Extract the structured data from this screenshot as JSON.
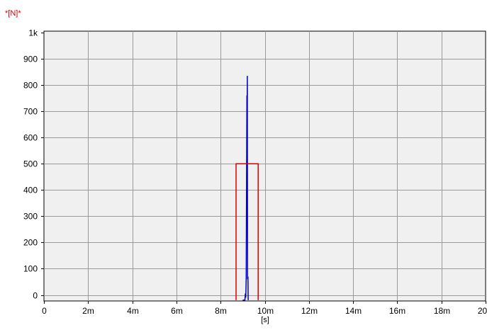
{
  "chart_data": {
    "type": "line",
    "unit_label": "*[N]*",
    "xlabel": "[s]",
    "ylabel": "",
    "xlim": [
      0,
      0.02
    ],
    "ylim": [
      0,
      1000
    ],
    "x_ticks": [
      {
        "value": 0,
        "label": "0"
      },
      {
        "value": 0.002,
        "label": "2m"
      },
      {
        "value": 0.004,
        "label": "4m"
      },
      {
        "value": 0.006,
        "label": "6m"
      },
      {
        "value": 0.008,
        "label": "8m"
      },
      {
        "value": 0.01,
        "label": "10m"
      },
      {
        "value": 0.012,
        "label": "12m"
      },
      {
        "value": 0.014,
        "label": "14m"
      },
      {
        "value": 0.016,
        "label": "16m"
      },
      {
        "value": 0.018,
        "label": "18m"
      },
      {
        "value": 0.02,
        "label": "20m"
      }
    ],
    "y_ticks": [
      {
        "value": 0,
        "label": "0"
      },
      {
        "value": 100,
        "label": "100"
      },
      {
        "value": 200,
        "label": "200"
      },
      {
        "value": 300,
        "label": "300"
      },
      {
        "value": 400,
        "label": "400"
      },
      {
        "value": 500,
        "label": "500"
      },
      {
        "value": 600,
        "label": "600"
      },
      {
        "value": 700,
        "label": "700"
      },
      {
        "value": 800,
        "label": "800"
      },
      {
        "value": 900,
        "label": "900"
      },
      {
        "value": 1000,
        "label": "1k"
      }
    ],
    "grid": true,
    "background_color": "#f0f0f0",
    "grid_color": "#9a9a9a",
    "series": [
      {
        "color": "#0000cc",
        "points": [
          [
            0.009,
            -20
          ],
          [
            0.0091,
            -20
          ],
          [
            0.00912,
            5
          ],
          [
            0.00914,
            -10
          ],
          [
            0.00916,
            60
          ],
          [
            0.00918,
            540
          ],
          [
            0.00919,
            760
          ],
          [
            0.0092,
            700
          ],
          [
            0.00921,
            835
          ],
          [
            0.00922,
            60
          ],
          [
            0.00924,
            70
          ],
          [
            0.00925,
            -20
          ]
        ]
      },
      {
        "color": "#dd0000",
        "points": [
          [
            0.0087,
            -20
          ],
          [
            0.0087,
            500
          ],
          [
            0.0097,
            500
          ],
          [
            0.0097,
            -20
          ]
        ]
      }
    ]
  }
}
